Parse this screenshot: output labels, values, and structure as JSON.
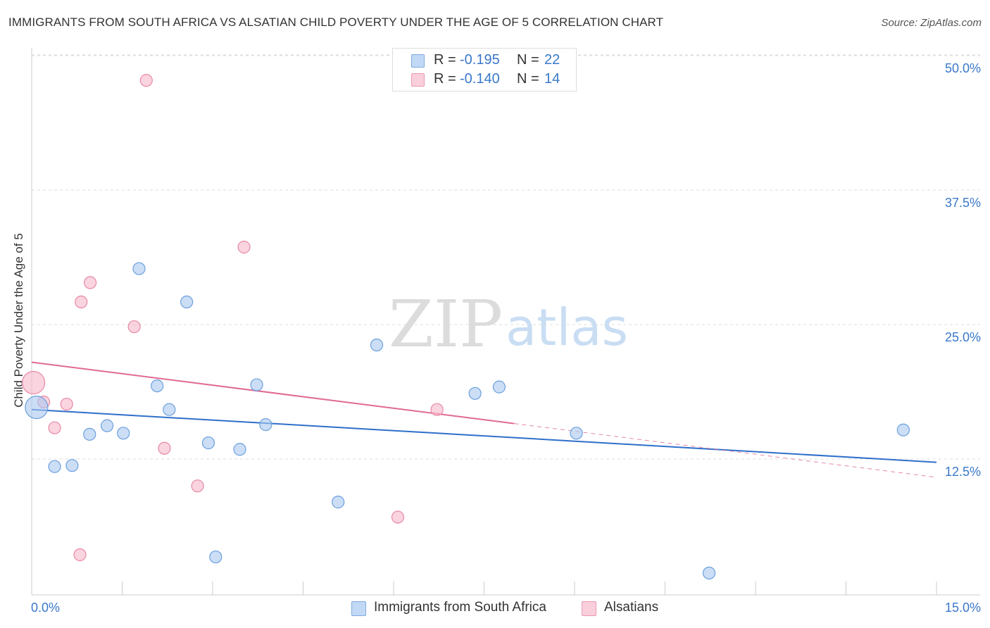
{
  "header": {
    "title": "IMMIGRANTS FROM SOUTH AFRICA VS ALSATIAN CHILD POVERTY UNDER THE AGE OF 5 CORRELATION CHART",
    "source": "Source: ZipAtlas.com"
  },
  "watermark": {
    "zip": "ZIP",
    "atlas": "atlas"
  },
  "stats_legend": [
    {
      "r_label": "R =",
      "r_value": "-0.195",
      "n_label": "N =",
      "n_value": "22",
      "color": "#a9c8f0"
    },
    {
      "r_label": "R =",
      "r_value": "-0.140",
      "n_label": "N =",
      "n_value": "14",
      "color": "#f7b7ca"
    }
  ],
  "chart_data": {
    "type": "scatter",
    "title": "IMMIGRANTS FROM SOUTH AFRICA VS ALSATIAN CHILD POVERTY UNDER THE AGE OF 5 CORRELATION CHART",
    "xlabel": "",
    "ylabel": "Child Poverty Under the Age of 5",
    "xlim": [
      0,
      15
    ],
    "ylim": [
      0,
      50
    ],
    "x_tick_labels": [
      "0.0%",
      "15.0%"
    ],
    "y_tick_values": [
      12.5,
      25.0,
      37.5,
      50.0
    ],
    "y_tick_labels": [
      "12.5%",
      "25.0%",
      "37.5%",
      "50.0%"
    ],
    "grid": true,
    "legend_position": "bottom-center",
    "series": [
      {
        "name": "Immigrants from South Africa",
        "color": "#a9c8f0",
        "stroke": "#6b9fdc",
        "line_color": "#2f6fcb",
        "points": [
          {
            "x": 0.08,
            "y": 17.3,
            "big": true
          },
          {
            "x": 0.38,
            "y": 11.8
          },
          {
            "x": 0.67,
            "y": 11.9
          },
          {
            "x": 0.96,
            "y": 14.8
          },
          {
            "x": 1.25,
            "y": 15.6
          },
          {
            "x": 1.52,
            "y": 14.9
          },
          {
            "x": 1.78,
            "y": 30.2
          },
          {
            "x": 2.08,
            "y": 19.3
          },
          {
            "x": 2.28,
            "y": 17.1
          },
          {
            "x": 2.57,
            "y": 27.1
          },
          {
            "x": 2.93,
            "y": 14.0
          },
          {
            "x": 3.05,
            "y": 3.4
          },
          {
            "x": 3.45,
            "y": 13.4
          },
          {
            "x": 3.73,
            "y": 19.4
          },
          {
            "x": 3.88,
            "y": 15.7
          },
          {
            "x": 5.08,
            "y": 8.5
          },
          {
            "x": 5.72,
            "y": 23.1
          },
          {
            "x": 7.35,
            "y": 18.6
          },
          {
            "x": 7.75,
            "y": 19.2
          },
          {
            "x": 9.03,
            "y": 14.9
          },
          {
            "x": 11.23,
            "y": 1.9
          },
          {
            "x": 14.45,
            "y": 15.2
          }
        ],
        "trend": {
          "x0": 0.0,
          "y0": 17.1,
          "x1": 15.0,
          "y1": 12.2
        }
      },
      {
        "name": "Alsatians",
        "color": "#f7b7ca",
        "stroke": "#e889a6",
        "line_color": "#e06a92",
        "points": [
          {
            "x": 0.03,
            "y": 19.6,
            "big": true
          },
          {
            "x": 0.2,
            "y": 17.8
          },
          {
            "x": 0.38,
            "y": 15.4
          },
          {
            "x": 0.58,
            "y": 17.6
          },
          {
            "x": 0.8,
            "y": 3.6
          },
          {
            "x": 0.82,
            "y": 27.1
          },
          {
            "x": 0.97,
            "y": 28.9
          },
          {
            "x": 1.7,
            "y": 24.8
          },
          {
            "x": 1.9,
            "y": 47.7
          },
          {
            "x": 2.2,
            "y": 13.5
          },
          {
            "x": 2.75,
            "y": 10.0
          },
          {
            "x": 3.52,
            "y": 32.2
          },
          {
            "x": 6.07,
            "y": 7.1
          },
          {
            "x": 6.72,
            "y": 17.1
          }
        ],
        "trend": {
          "x0": 0.0,
          "y0": 21.5,
          "x1": 8.0,
          "y1": 15.8
        },
        "trend_dashed": {
          "x0": 8.0,
          "y0": 15.8,
          "x1": 15.0,
          "y1": 10.8
        }
      }
    ]
  },
  "bottom_legend": [
    {
      "label": "Immigrants from South Africa"
    },
    {
      "label": "Alsatians"
    }
  ]
}
